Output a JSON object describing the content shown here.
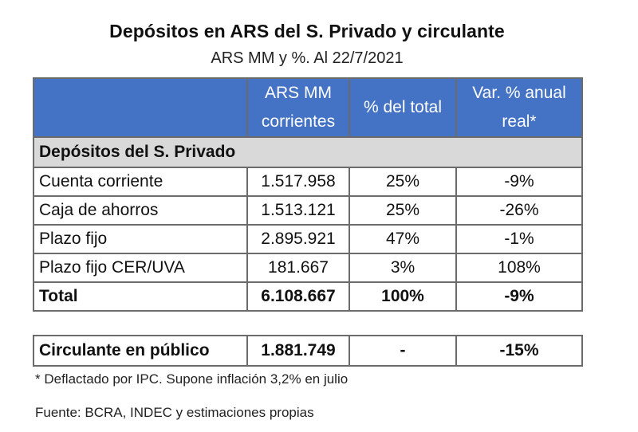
{
  "title": "Depósitos en ARS del S. Privado y circulante",
  "subtitle": "ARS MM y %. Al 22/7/2021",
  "headers": {
    "blank": "",
    "col1_line1": "ARS MM",
    "col1_line2": "corrientes",
    "col2": "% del total",
    "col3_line1": "Var. % anual",
    "col3_line2": "real*"
  },
  "section_label": "Depósitos del S. Privado",
  "rows": [
    {
      "label": "Cuenta corriente",
      "ars": "1.517.958",
      "pct": "25%",
      "var": "-9%"
    },
    {
      "label": "Caja de ahorros",
      "ars": "1.513.121",
      "pct": "25%",
      "var": "-26%"
    },
    {
      "label": "Plazo fijo",
      "ars": "2.895.921",
      "pct": "47%",
      "var": "-1%"
    },
    {
      "label": "Plazo fijo CER/UVA",
      "ars": "181.667",
      "pct": "3%",
      "var": "108%"
    }
  ],
  "total": {
    "label": "Total",
    "ars": "6.108.667",
    "pct": "100%",
    "var": "-9%"
  },
  "circulante": {
    "label": "Circulante en público",
    "ars": "1.881.749",
    "pct": "-",
    "var": "-15%"
  },
  "note": "* Deflactado por IPC. Supone inflación 3,2% en julio",
  "source": "Fuente: BCRA, INDEC y estimaciones propias",
  "colors": {
    "header_bg": "#4472c4",
    "section_bg": "#d9d9d9",
    "border": "#6b6b6b"
  }
}
